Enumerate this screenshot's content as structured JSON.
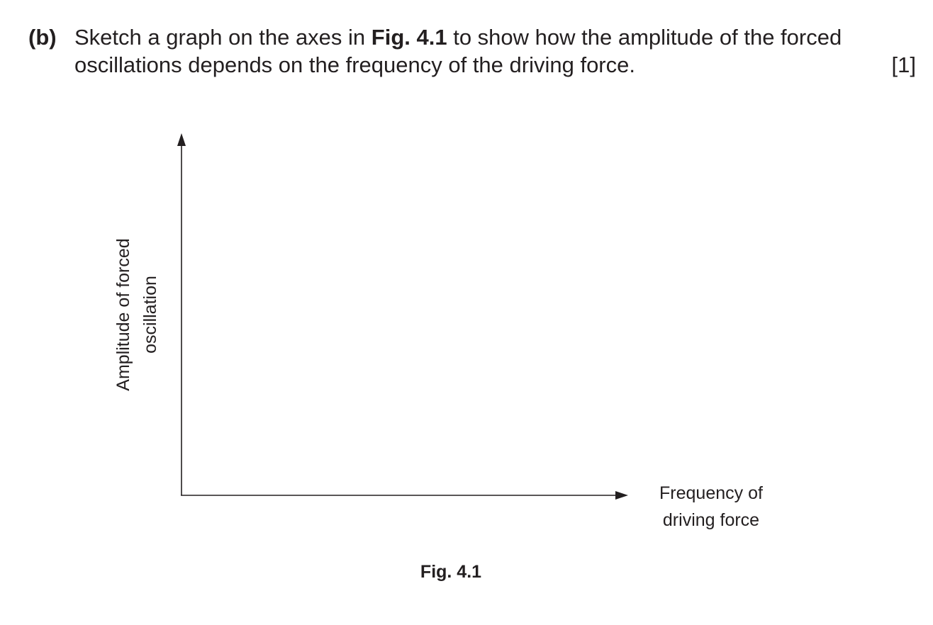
{
  "question": {
    "label": "(b)",
    "line1_before": "Sketch a graph on the axes in ",
    "line1_figref": "Fig. 4.1",
    "line1_after": " to show how the amplitude of the forced",
    "line2": "oscillations depends on the frequency of the driving force.",
    "marks": "[1]"
  },
  "figure": {
    "y_axis_label_line1": "Amplitude of forced",
    "y_axis_label_line2": "oscillation",
    "x_axis_label_line1": "Frequency of",
    "x_axis_label_line2": "driving force",
    "caption": "Fig. 4.1",
    "axis_color": "#231f20"
  }
}
